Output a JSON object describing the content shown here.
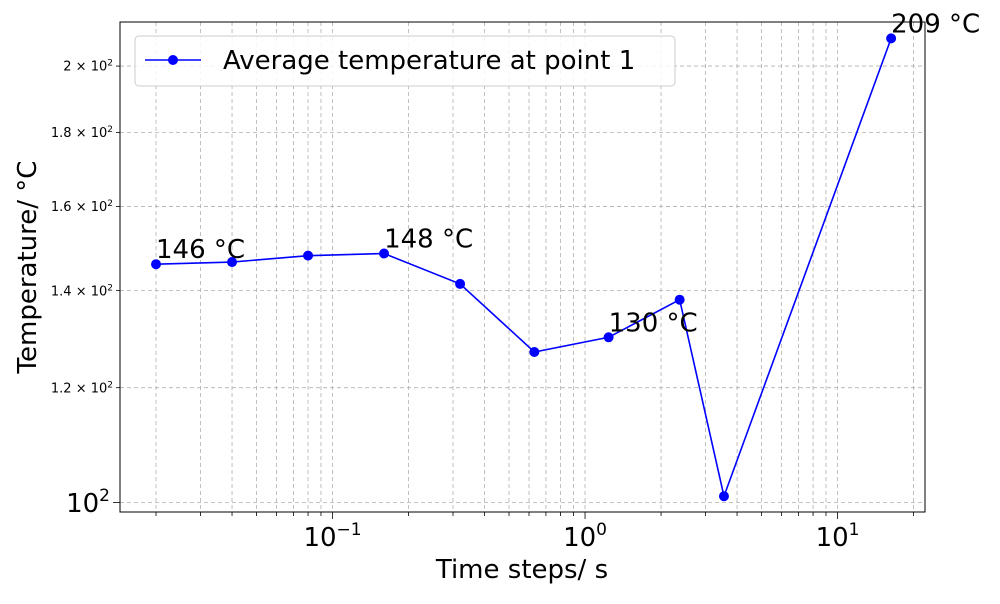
{
  "chart_data": {
    "type": "line",
    "xlabel": "Time steps/ s",
    "ylabel": "Temperature/ °C",
    "x_scale": "log",
    "y_scale": "log",
    "xlim": [
      0.0144,
      22.2
    ],
    "ylim": [
      98.5,
      214.5
    ],
    "grid": true,
    "legend_position": "upper-left",
    "series": [
      {
        "name": "Average temperature at point 1",
        "color": "#0000ff",
        "marker": "circle",
        "x": [
          0.02,
          0.04,
          0.08,
          0.16,
          0.32,
          0.63,
          1.24,
          2.37,
          3.55,
          16.3
        ],
        "y": [
          146,
          146.5,
          148,
          148.5,
          141.5,
          127,
          130,
          138,
          101,
          209
        ]
      }
    ],
    "x_major_ticks": [
      {
        "value": 0.1,
        "label_base": "10",
        "label_exp": "−1"
      },
      {
        "value": 1,
        "label_base": "10",
        "label_exp": "0"
      },
      {
        "value": 10,
        "label_base": "10",
        "label_exp": "1"
      }
    ],
    "y_major_ticks": [
      {
        "value": 100,
        "label_base": "10",
        "label_exp": "2"
      }
    ],
    "y_minor_ticks": [
      {
        "value": 120,
        "label": "1.2 × 10",
        "label_exp": "2"
      },
      {
        "value": 140,
        "label": "1.4 × 10",
        "label_exp": "2"
      },
      {
        "value": 160,
        "label": "1.6 × 10",
        "label_exp": "2"
      },
      {
        "value": 180,
        "label": "1.8 × 10",
        "label_exp": "2"
      },
      {
        "value": 200,
        "label": "2 × 10",
        "label_exp": "2"
      }
    ],
    "annotations": [
      {
        "text": "146 °C",
        "x": 0.02,
        "y": 146
      },
      {
        "text": "148 °C",
        "x": 0.16,
        "y": 148.5
      },
      {
        "text": "130 °C",
        "x": 1.24,
        "y": 130
      },
      {
        "text": "209 °C",
        "x": 16.3,
        "y": 209
      }
    ]
  }
}
